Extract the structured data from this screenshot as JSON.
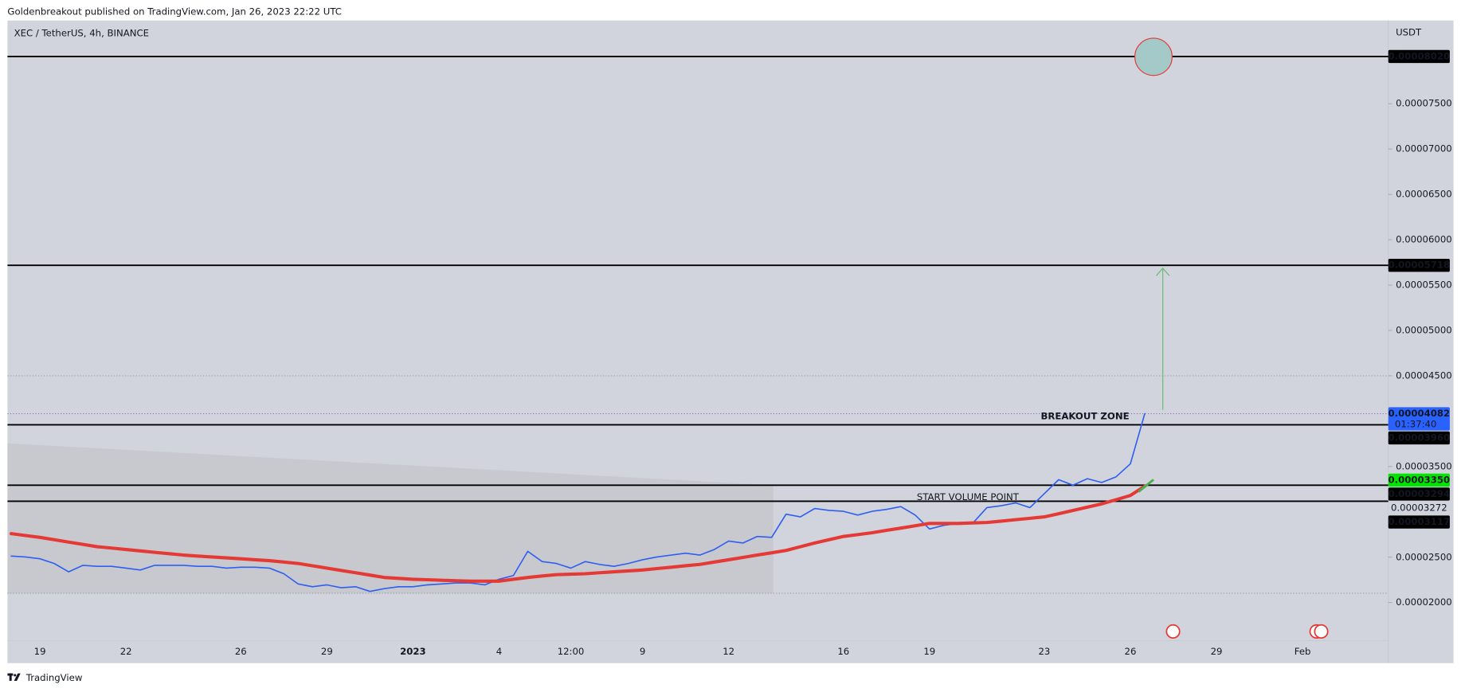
{
  "chart_data": {
    "type": "line",
    "header": "Goldenbreakout published on TradingView.com, Jan 26, 2023 22:22 UTC",
    "title": "XEC / TetherUS, 4h, BINANCE",
    "y_unit": "USDT",
    "footer": "TradingView",
    "annotations": [
      "BREAKOUT ZONE",
      "START VOLUME POINT"
    ],
    "categories": [
      null,
      null,
      "19",
      null,
      null,
      null,
      null,
      null,
      "22",
      null,
      null,
      null,
      null,
      null,
      null,
      null,
      "26",
      null,
      null,
      null,
      null,
      null,
      "29",
      null,
      null,
      null,
      null,
      null,
      "2023",
      null,
      null,
      null,
      null,
      null,
      "4",
      null,
      null,
      null,
      null,
      "12:00",
      null,
      null,
      null,
      null,
      "9",
      null,
      null,
      null,
      null,
      null,
      "12",
      null,
      null,
      null,
      null,
      null,
      null,
      null,
      "16",
      null,
      null,
      null,
      null,
      null,
      "19",
      null,
      null,
      null,
      null,
      null,
      null,
      null,
      "23",
      null,
      null,
      null,
      null,
      null,
      "26",
      null,
      null,
      null,
      null,
      null,
      "29",
      null,
      null,
      null,
      null,
      null,
      "Feb",
      null,
      null,
      null,
      null,
      null,
      null
    ],
    "series": [
      {
        "color": "#2f5ff0",
        "width": 1.4,
        "values": [
          2.513e-05,
          2.503e-05,
          2.483e-05,
          2.431e-05,
          2.339e-05,
          2.411e-05,
          2.4e-05,
          2.4e-05,
          2.38e-05,
          2.359e-05,
          2.411e-05,
          2.411e-05,
          2.411e-05,
          2.4e-05,
          2.4e-05,
          2.38e-05,
          2.39e-05,
          2.39e-05,
          2.38e-05,
          2.318e-05,
          2.205e-05,
          2.175e-05,
          2.195e-05,
          2.164e-05,
          2.175e-05,
          2.123e-05,
          2.154e-05,
          2.175e-05,
          2.175e-05,
          2.195e-05,
          2.205e-05,
          2.216e-05,
          2.216e-05,
          2.195e-05,
          2.257e-05,
          2.298e-05,
          2.565e-05,
          2.452e-05,
          2.431e-05,
          2.38e-05,
          2.452e-05,
          2.421e-05,
          2.4e-05,
          2.431e-05,
          2.472e-05,
          2.503e-05,
          2.524e-05,
          2.544e-05,
          2.524e-05,
          2.585e-05,
          2.678e-05,
          2.657e-05,
          2.729e-05,
          2.719e-05,
          2.975e-05,
          2.945e-05,
          3.037e-05,
          3.016e-05,
          3.006e-05,
          2.965e-05,
          3.006e-05,
          3.027e-05,
          3.058e-05,
          2.965e-05,
          2.811e-05,
          2.852e-05,
          2.873e-05,
          2.873e-05,
          3.047e-05,
          3.068e-05,
          3.099e-05,
          3.047e-05,
          3.201e-05,
          3.355e-05,
          3.294e-05,
          3.366e-05,
          3.324e-05,
          3.386e-05,
          3.53e-05,
          4.082e-05,
          null,
          null,
          null,
          null,
          null,
          null,
          null,
          null,
          null,
          null,
          null,
          null,
          null,
          null,
          null,
          null,
          null
        ]
      },
      {
        "color": "#e53935",
        "width": 3.5,
        "values": [
          2.76e-05,
          2.739e-05,
          2.719e-05,
          2.693e-05,
          2.667e-05,
          2.642e-05,
          2.616e-05,
          2.601e-05,
          2.585e-05,
          2.57e-05,
          2.554e-05,
          2.539e-05,
          2.524e-05,
          2.513e-05,
          2.503e-05,
          2.493e-05,
          2.483e-05,
          2.472e-05,
          2.462e-05,
          2.447e-05,
          2.431e-05,
          2.406e-05,
          2.38e-05,
          2.354e-05,
          2.329e-05,
          2.303e-05,
          2.277e-05,
          2.267e-05,
          2.257e-05,
          2.252e-05,
          2.246e-05,
          2.241e-05,
          2.236e-05,
          2.236e-05,
          2.236e-05,
          2.257e-05,
          2.277e-05,
          2.293e-05,
          2.308e-05,
          2.313e-05,
          2.318e-05,
          2.329e-05,
          2.339e-05,
          2.349e-05,
          2.359e-05,
          2.375e-05,
          2.39e-05,
          2.406e-05,
          2.421e-05,
          2.447e-05,
          2.472e-05,
          2.498e-05,
          2.524e-05,
          2.549e-05,
          2.575e-05,
          2.616e-05,
          2.657e-05,
          2.693e-05,
          2.729e-05,
          2.749e-05,
          2.77e-05,
          2.796e-05,
          2.821e-05,
          2.847e-05,
          2.873e-05,
          2.873e-05,
          2.873e-05,
          2.878e-05,
          2.883e-05,
          2.898e-05,
          2.914e-05,
          2.929e-05,
          2.945e-05,
          2.98e-05,
          3.016e-05,
          3.052e-05,
          3.088e-05,
          3.134e-05,
          3.181e-05,
          3.283e-05,
          null,
          null,
          null,
          null,
          null,
          null,
          null,
          null,
          null,
          null,
          null,
          null,
          null,
          null,
          null,
          null,
          null
        ]
      }
    ],
    "ylim": [
      1.579e-05,
      8.417e-05
    ],
    "yticks": [
      {
        "value": 2e-05,
        "label": "0.00002000"
      },
      {
        "value": 2.5e-05,
        "label": "0.00002500"
      },
      {
        "value": 3.5e-05,
        "label": "0.00003500"
      },
      {
        "value": 4.5e-05,
        "label": "0.00004500"
      },
      {
        "value": 5e-05,
        "label": "0.00005000"
      },
      {
        "value": 5.5e-05,
        "label": "0.00005500"
      },
      {
        "value": 6e-05,
        "label": "0.00006000"
      },
      {
        "value": 6.5e-05,
        "label": "0.00006500"
      },
      {
        "value": 7e-05,
        "label": "0.00007000"
      },
      {
        "value": 7.5e-05,
        "label": "0.00007500"
      }
    ],
    "dotted_lines": [
      4.5e-05
    ],
    "current_price": {
      "value": 4.082e-05,
      "label": "0.00004082",
      "countdown": "01:37:40",
      "color": "#2962ff",
      "text_color": "#ffffff"
    },
    "levels": [
      {
        "value": 8.02e-05,
        "label": "0.00008020",
        "line": true,
        "color": "#000000",
        "text_color": "#ffffff"
      },
      {
        "value": 5.718e-05,
        "label": "0.00005718",
        "line": true,
        "color": "#000000",
        "text_color": "#ffffff"
      },
      {
        "value": 3.96e-05,
        "label": "0.00003960",
        "line": true,
        "color": "#000000",
        "text_color": "#ffffff"
      },
      {
        "value": 3.35e-05,
        "label": "0.00003350",
        "line": false,
        "color": "#00e600",
        "text_color": "#000000"
      },
      {
        "value": 3.294e-05,
        "label": "0.00003294",
        "line": true,
        "color": "#000000",
        "text_color": "#ffffff"
      },
      {
        "value": 3.272e-05,
        "label": "0.00003272",
        "line": false,
        "color": "#d1d4dc",
        "text_color": "#50535e"
      },
      {
        "value": 3.117e-05,
        "label": "0.00003117",
        "line": true,
        "color": "#000000",
        "text_color": "#ffffff"
      }
    ]
  }
}
